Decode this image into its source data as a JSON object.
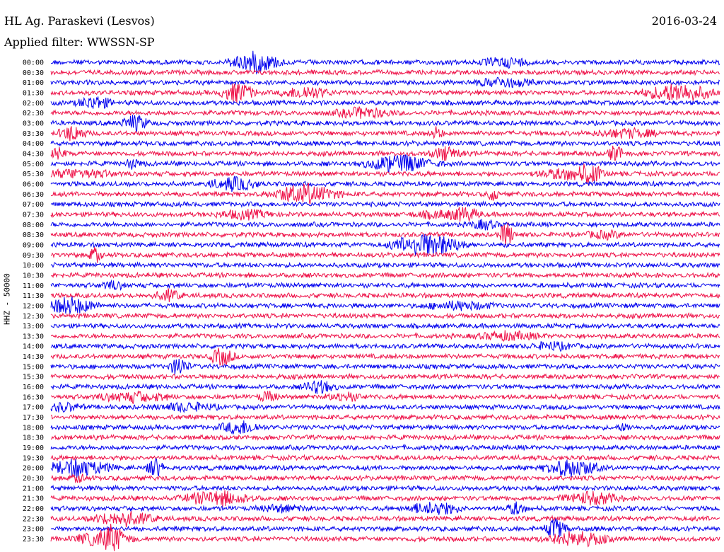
{
  "header": {
    "station": "HL Ag. Paraskevi (Lesvos)",
    "date": "2016-03-24",
    "filter": "Applied filter: WWSSN-SP"
  },
  "chart_data": {
    "type": "line",
    "title": "HL Ag. Paraskevi (Lesvos)",
    "date": "2016-03-24",
    "filter": "Applied filter: WWSSN-SP",
    "ylabel": "HHZ - 50000",
    "row_labels": [
      "00:00",
      "00:30",
      "01:00",
      "01:30",
      "02:00",
      "02:30",
      "03:00",
      "03:30",
      "04:00",
      "04:30",
      "05:00",
      "05:30",
      "06:00",
      "06:30",
      "07:00",
      "07:30",
      "08:00",
      "08:30",
      "09:00",
      "09:30",
      "10:00",
      "10:30",
      "11:00",
      "11:30",
      "12:00",
      "12:30",
      "13:00",
      "13:30",
      "14:00",
      "14:30",
      "15:00",
      "15:30",
      "16:00",
      "16:30",
      "17:00",
      "17:30",
      "18:00",
      "18:30",
      "19:00",
      "19:30",
      "20:00",
      "20:30",
      "21:00",
      "21:30",
      "22:00",
      "22:30",
      "23:00",
      "23:30"
    ],
    "colors": [
      "#0000ee",
      "#ee1148"
    ],
    "grid": false
  }
}
